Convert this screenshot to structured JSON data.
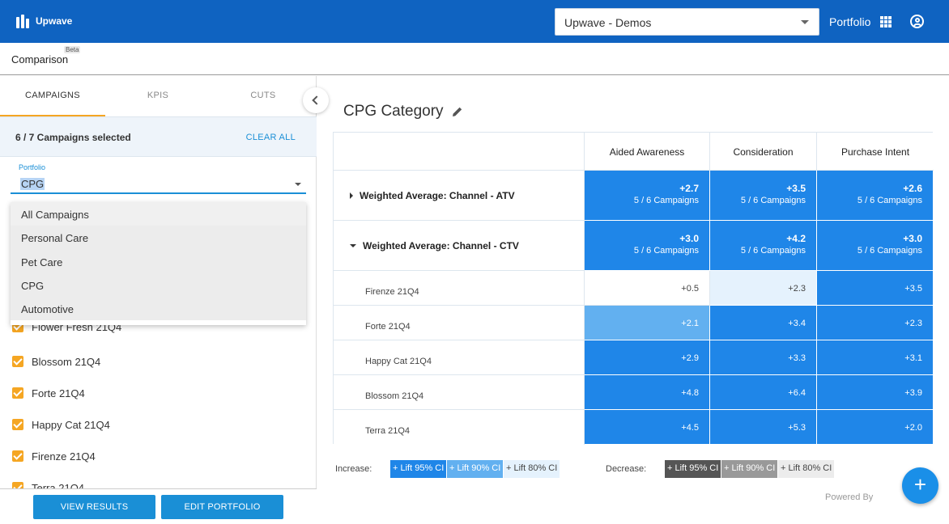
{
  "header": {
    "brand": "Upwave",
    "org_select": "Upwave - Demos",
    "portfolio_link": "Portfolio"
  },
  "subheader": {
    "tab": "Comparison",
    "badge": "Beta"
  },
  "sidebar": {
    "tabs": [
      "CAMPAIGNS",
      "KPIS",
      "CUTS"
    ],
    "selection_text": "6 / 7 Campaigns selected",
    "clear_all": "CLEAR ALL",
    "portfolio_label": "Portfolio",
    "portfolio_value": "CPG",
    "dropdown_options": [
      "All Campaigns",
      "Personal Care",
      "Pet Care",
      "CPG",
      "Automotive"
    ],
    "campaigns": [
      "Flower Fresh 21Q4",
      "Blossom 21Q4",
      "Forte 21Q4",
      "Happy Cat 21Q4",
      "Firenze 21Q4",
      "Terra 21Q4"
    ],
    "view_results": "VIEW RESULTS",
    "edit_portfolio": "EDIT PORTFOLIO"
  },
  "main": {
    "title": "CPG Category",
    "columns": [
      "Aided Awareness",
      "Consideration",
      "Purchase Intent"
    ],
    "groups": [
      {
        "label": "Weighted Average: Channel - ATV",
        "expanded": false,
        "values": [
          "+2.7",
          "+3.5",
          "+2.6"
        ],
        "counts": [
          "5 / 6 Campaigns",
          "5 / 6 Campaigns",
          "5 / 6 Campaigns"
        ]
      },
      {
        "label": "Weighted Average: Channel - CTV",
        "expanded": true,
        "values": [
          "+3.0",
          "+4.2",
          "+3.0"
        ],
        "counts": [
          "5 / 6 Campaigns",
          "5 / 6 Campaigns",
          "5 / 6 Campaigns"
        ]
      }
    ],
    "rows": [
      {
        "label": "Firenze 21Q4",
        "values": [
          "+0.5",
          "+2.3",
          "+3.5"
        ]
      },
      {
        "label": "Forte 21Q4",
        "values": [
          "+2.1",
          "+3.4",
          "+2.3"
        ]
      },
      {
        "label": "Happy Cat 21Q4",
        "values": [
          "+2.9",
          "+3.3",
          "+3.1"
        ]
      },
      {
        "label": "Blossom 21Q4",
        "values": [
          "+4.8",
          "+6.4",
          "+3.9"
        ]
      },
      {
        "label": "Terra 21Q4",
        "values": [
          "+4.5",
          "+5.3",
          "+2.0"
        ]
      }
    ]
  },
  "legend": {
    "increase_label": "Increase:",
    "increase_items": [
      "+ Lift 95% CI",
      "+ Lift 90% CI",
      "+ Lift 80% CI"
    ],
    "decrease_label": "Decrease:",
    "decrease_items": [
      "+ Lift 95% CI",
      "+ Lift 90% CI",
      "+ Lift 80% CI"
    ]
  },
  "footer": {
    "powered_by": "Powered By",
    "fab": "+"
  },
  "colors": {
    "header_blue": "#0f63c1",
    "accent_orange": "#f5a623",
    "strong_blue": "#1f86e8",
    "mid_blue": "#62b0f0",
    "light_blue": "#e5f2fd"
  }
}
